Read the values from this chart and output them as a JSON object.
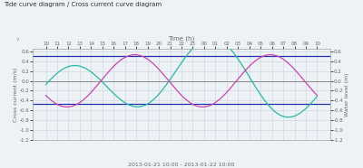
{
  "title": "Tide curve diagram / Cross current curve diagram",
  "xlabel_top": "Time (h)",
  "ylabel_left": "Cross current (m/s)",
  "ylabel_right": "Water level (m)",
  "xlabel_bottom": "2013-01-21 10:00 - 2013-01-22 10:00",
  "x_tick_labels": [
    "10",
    "11",
    "12",
    "13",
    "14",
    "15",
    "16",
    "17",
    "18",
    "19",
    "20",
    "21",
    "22",
    "23",
    "00",
    "01",
    "02",
    "03",
    "04",
    "05",
    "06",
    "07",
    "08",
    "09",
    "10"
  ],
  "ylim": [
    -1.2,
    0.65
  ],
  "yticks": [
    -1.2,
    -1.0,
    -0.8,
    -0.6,
    -0.4,
    -0.2,
    0.0,
    0.2,
    0.4,
    0.6
  ],
  "hline1": 0.5,
  "hline2": -0.46,
  "hline_color": "#2233aa",
  "bg_color": "#edf2f7",
  "grid_color": "#c8d0da",
  "curve_teal_color": "#28b8a8",
  "curve_purple_color": "#cc44aa",
  "zero_line_color": "#888888",
  "title_color": "#333333",
  "tick_color": "#666666",
  "ylabel_color": "#666666"
}
